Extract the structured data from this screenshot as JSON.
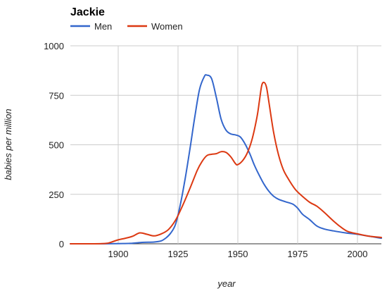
{
  "chart_data": {
    "type": "line",
    "title": "Jackie",
    "xlabel": "year",
    "ylabel": "babies per million",
    "xlim": [
      1880,
      2010
    ],
    "ylim": [
      0,
      1000
    ],
    "x_ticks": [
      1900,
      1925,
      1950,
      1975,
      2000
    ],
    "y_ticks": [
      0,
      250,
      500,
      750,
      1000
    ],
    "legend_position": "top-left",
    "grid": true,
    "series": [
      {
        "name": "Men",
        "color": "#3366cc",
        "points": [
          [
            1880,
            0
          ],
          [
            1890,
            0
          ],
          [
            1900,
            1
          ],
          [
            1905,
            2
          ],
          [
            1910,
            7
          ],
          [
            1915,
            9
          ],
          [
            1918,
            15
          ],
          [
            1920,
            30
          ],
          [
            1922,
            55
          ],
          [
            1924,
            100
          ],
          [
            1926,
            200
          ],
          [
            1928,
            330
          ],
          [
            1930,
            480
          ],
          [
            1932,
            640
          ],
          [
            1934,
            780
          ],
          [
            1936,
            845
          ],
          [
            1937,
            852
          ],
          [
            1939,
            835
          ],
          [
            1941,
            740
          ],
          [
            1943,
            630
          ],
          [
            1945,
            575
          ],
          [
            1947,
            555
          ],
          [
            1949,
            550
          ],
          [
            1951,
            540
          ],
          [
            1953,
            505
          ],
          [
            1955,
            455
          ],
          [
            1957,
            395
          ],
          [
            1959,
            345
          ],
          [
            1961,
            300
          ],
          [
            1963,
            265
          ],
          [
            1965,
            240
          ],
          [
            1967,
            225
          ],
          [
            1970,
            212
          ],
          [
            1973,
            200
          ],
          [
            1975,
            180
          ],
          [
            1977,
            150
          ],
          [
            1980,
            122
          ],
          [
            1983,
            90
          ],
          [
            1986,
            75
          ],
          [
            1990,
            65
          ],
          [
            1995,
            55
          ],
          [
            2000,
            48
          ],
          [
            2005,
            38
          ],
          [
            2010,
            28
          ]
        ]
      },
      {
        "name": "Women",
        "color": "#dc3912",
        "points": [
          [
            1880,
            0
          ],
          [
            1890,
            0
          ],
          [
            1895,
            2
          ],
          [
            1897,
            8
          ],
          [
            1900,
            20
          ],
          [
            1903,
            28
          ],
          [
            1906,
            38
          ],
          [
            1909,
            55
          ],
          [
            1912,
            48
          ],
          [
            1915,
            40
          ],
          [
            1918,
            50
          ],
          [
            1921,
            72
          ],
          [
            1924,
            120
          ],
          [
            1927,
            195
          ],
          [
            1930,
            280
          ],
          [
            1933,
            370
          ],
          [
            1935,
            415
          ],
          [
            1937,
            445
          ],
          [
            1939,
            452
          ],
          [
            1941,
            455
          ],
          [
            1943,
            465
          ],
          [
            1945,
            462
          ],
          [
            1947,
            440
          ],
          [
            1949,
            405
          ],
          [
            1950,
            400
          ],
          [
            1952,
            420
          ],
          [
            1954,
            460
          ],
          [
            1956,
            530
          ],
          [
            1958,
            640
          ],
          [
            1959,
            720
          ],
          [
            1960,
            800
          ],
          [
            1961,
            815
          ],
          [
            1962,
            790
          ],
          [
            1963,
            715
          ],
          [
            1965,
            560
          ],
          [
            1967,
            450
          ],
          [
            1969,
            375
          ],
          [
            1971,
            330
          ],
          [
            1974,
            275
          ],
          [
            1977,
            240
          ],
          [
            1980,
            210
          ],
          [
            1983,
            190
          ],
          [
            1986,
            160
          ],
          [
            1990,
            115
          ],
          [
            1993,
            85
          ],
          [
            1996,
            62
          ],
          [
            2000,
            50
          ],
          [
            2005,
            38
          ],
          [
            2010,
            32
          ]
        ]
      }
    ]
  }
}
